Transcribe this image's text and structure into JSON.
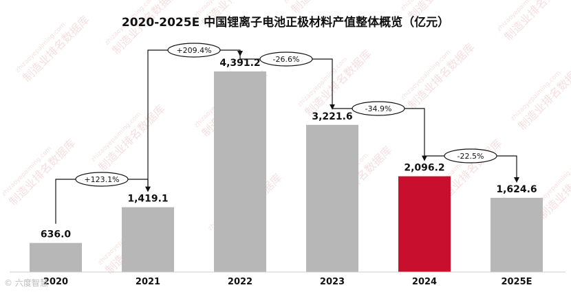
{
  "chart_data": {
    "type": "bar",
    "title": "2020-2025E 中国锂离子电池正极材料产值整体概览（亿元）",
    "categories": [
      "2020",
      "2021",
      "2022",
      "2023",
      "2024",
      "2025E"
    ],
    "values": [
      636.0,
      1419.1,
      4391.2,
      3221.6,
      2096.2,
      1624.6
    ],
    "value_labels": [
      "636.0",
      "1,419.1",
      "4,391.2",
      "3,221.6",
      "2,096.2",
      "1,624.6"
    ],
    "ylim": [
      0,
      4800
    ],
    "grid": false,
    "bar_color": "#b7b7b7",
    "highlight_index": 4,
    "highlight_color": "#c8102e",
    "changes": [
      {
        "from": 0,
        "to": 1,
        "label": "+123.1%"
      },
      {
        "from": 1,
        "to": 2,
        "label": "+209.4%"
      },
      {
        "from": 2,
        "to": 3,
        "label": "-26.6%"
      },
      {
        "from": 3,
        "to": 4,
        "label": "-34.9%"
      },
      {
        "from": 4,
        "to": 5,
        "label": "-22.5%"
      }
    ]
  },
  "watermark": {
    "text": "制造业排名数据库",
    "url": "zhizaoyepaiming.com"
  },
  "corner_mark": "© 六度智慧"
}
